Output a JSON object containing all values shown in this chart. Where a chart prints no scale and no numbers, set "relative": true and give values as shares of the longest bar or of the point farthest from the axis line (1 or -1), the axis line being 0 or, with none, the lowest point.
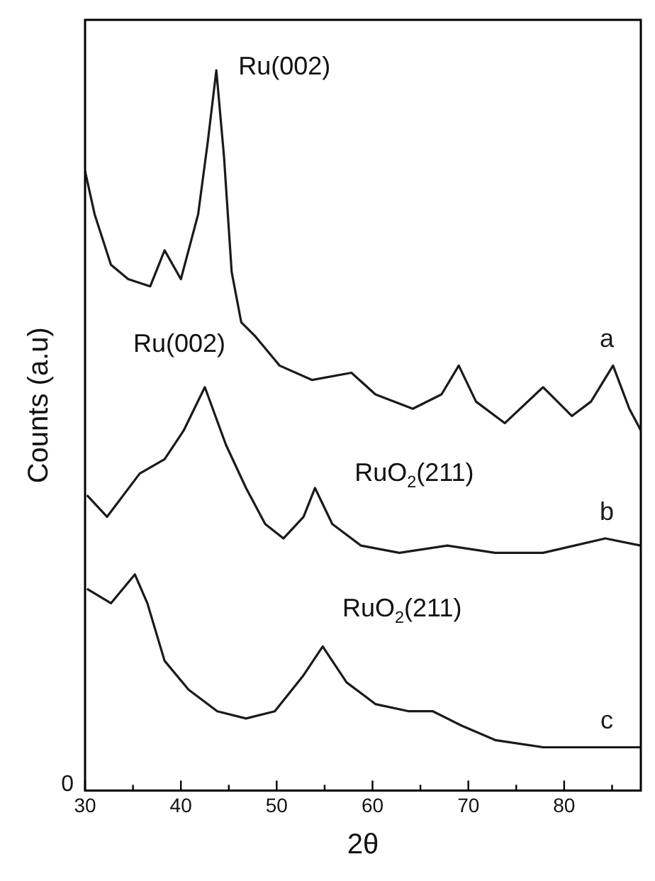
{
  "chart_data": {
    "type": "line",
    "relative": true,
    "xlabel": "2θ",
    "ylabel": "Counts (a.u)",
    "xlim": [
      30,
      88
    ],
    "xticks": [
      30,
      {
        "value": 35,
        "label": null
      },
      40,
      {
        "value": 45,
        "label": null
      },
      50,
      {
        "value": 55,
        "label": null
      },
      60,
      {
        "value": 65,
        "label": null
      },
      70,
      {
        "value": 75,
        "label": null
      },
      80,
      {
        "value": 85,
        "label": null
      }
    ],
    "grid": false,
    "legend": false,
    "marker": "none",
    "line_style": "solid",
    "series": [
      {
        "name": "a",
        "color": "#1a1a1a",
        "x": [
          30,
          31,
          32.7,
          34.5,
          36.8,
          38.3,
          40,
          41.8,
          42.8,
          43.7,
          44.5,
          45.3,
          46.3,
          47.8,
          50.3,
          53.7,
          57.8,
          60.3,
          64.2,
          67.2,
          69,
          70.8,
          73.8,
          77.8,
          80.8,
          82.8,
          85.1,
          86.8,
          88
        ],
        "values": [
          0.86,
          0.8,
          0.73,
          0.71,
          0.7,
          0.75,
          0.71,
          0.8,
          0.9,
          1.0,
          0.88,
          0.72,
          0.65,
          0.63,
          0.59,
          0.57,
          0.58,
          0.55,
          0.53,
          0.55,
          0.59,
          0.54,
          0.51,
          0.56,
          0.52,
          0.54,
          0.59,
          0.53,
          0.5
        ]
      },
      {
        "name": "b",
        "color": "#1a1a1a",
        "x": [
          30.2,
          32.3,
          35.7,
          38.3,
          40.3,
          42.5,
          44.7,
          46.8,
          48.8,
          50.7,
          52.8,
          54,
          55.8,
          58.8,
          62.8,
          67.8,
          72.8,
          77.8,
          84.3,
          88
        ],
        "values": [
          0.41,
          0.38,
          0.44,
          0.46,
          0.5,
          0.56,
          0.48,
          0.42,
          0.37,
          0.35,
          0.38,
          0.42,
          0.37,
          0.34,
          0.33,
          0.34,
          0.33,
          0.33,
          0.35,
          0.34
        ]
      },
      {
        "name": "c",
        "color": "#1a1a1a",
        "x": [
          30.2,
          32.7,
          35.2,
          36.5,
          38.3,
          40.8,
          43.8,
          46.8,
          49.8,
          52.8,
          54.8,
          57.3,
          60.3,
          63.8,
          66.3,
          69.3,
          72.8,
          77.8,
          88
        ],
        "values": [
          0.28,
          0.26,
          0.3,
          0.26,
          0.18,
          0.14,
          0.11,
          0.1,
          0.11,
          0.16,
          0.2,
          0.15,
          0.12,
          0.11,
          0.11,
          0.09,
          0.07,
          0.06,
          0.06
        ]
      }
    ],
    "annotations": [
      {
        "text": "Ru(002)",
        "x": 43.7,
        "y": 1.0
      },
      {
        "text": "Ru(002)",
        "x": 42.5,
        "y": 0.56
      },
      {
        "text": "RuO$_{2}$(211)",
        "x": 54,
        "y": 0.42
      },
      {
        "text": "RuO$_{2}$(211)",
        "x": 54.8,
        "y": 0.2
      },
      "0"
    ]
  }
}
